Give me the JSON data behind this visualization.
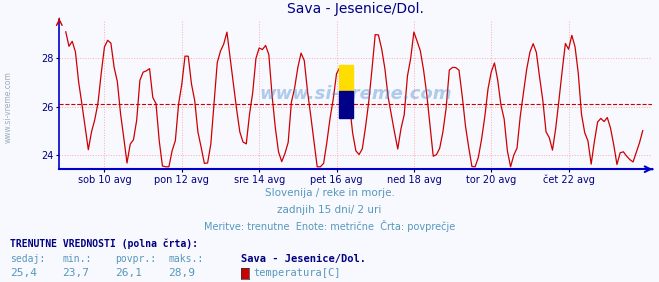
{
  "title": "Sava - Jesenice/Dol.",
  "title_color": "#000080",
  "title_fontsize": 10,
  "bg_color": "#f8f8ff",
  "plot_bg_color": "#f8f8ff",
  "line_color": "#cc0000",
  "line_width": 0.9,
  "avg_line_color": "#cc0000",
  "avg_value": 26.1,
  "ymin": 23.4,
  "ymax": 29.6,
  "yticks": [
    24,
    26,
    28
  ],
  "ylabel_color": "#000080",
  "xaxis_color": "#0000cc",
  "grid_color": "#ffaaaa",
  "xtick_labels": [
    "sob 10 avg",
    "pon 12 avg",
    "sre 14 avg",
    "pet 16 avg",
    "ned 18 avg",
    "tor 20 avg",
    "čet 22 avg"
  ],
  "subtitle1": "Slovenija / reke in morje.",
  "subtitle2": "zadnjih 15 dni/ 2 uri",
  "subtitle3": "Meritve: trenutne  Enote: metrične  Črta: povprečje",
  "subtitle_color": "#5599bb",
  "footer_title": "TRENUTNE VREDNOSTI (polna črta):",
  "footer_color": "#000080",
  "footer_labels": [
    "sedaj:",
    "min.:",
    "povpr.:",
    "maks.:"
  ],
  "footer_values": [
    "25,4",
    "23,7",
    "26,1",
    "28,9"
  ],
  "footer_series": "Sava - Jesenice/Dol.",
  "footer_legend": "temperatura[C]",
  "legend_color": "#cc0000",
  "watermark": "www.si-vreme.com",
  "left_label": "www.si-vreme.com",
  "num_points": 180
}
